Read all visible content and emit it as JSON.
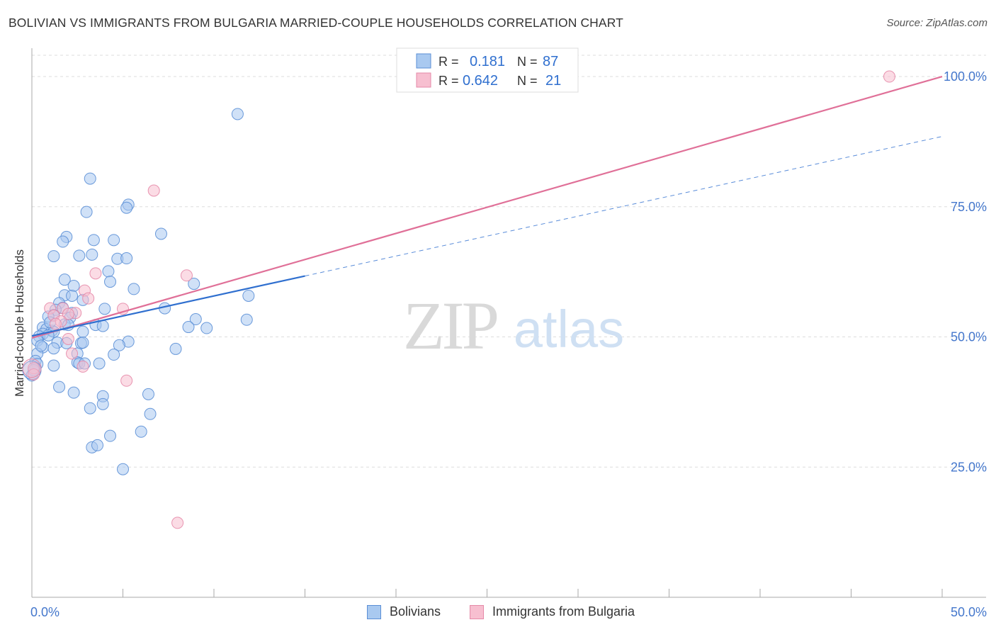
{
  "header": {
    "title": "BOLIVIAN VS IMMIGRANTS FROM BULGARIA MARRIED-COUPLE HOUSEHOLDS CORRELATION CHART",
    "source": "Source: ZipAtlas.com"
  },
  "watermark": {
    "zip": "ZIP",
    "atlas": "atlas"
  },
  "colors": {
    "blue": "#a9c9f0",
    "blue_stroke": "#5b8fd6",
    "blue_line": "#2f6fcf",
    "pink": "#f7bfd0",
    "pink_stroke": "#e58aa8",
    "pink_line": "#e07098",
    "axis_text": "#4477cc",
    "grid": "#dddddd"
  },
  "legend": {
    "rows": [
      {
        "r_label": "R =",
        "r_value": "0.181",
        "n_label": "N =",
        "n_value": "87"
      },
      {
        "r_label": "R =",
        "r_value": "0.642",
        "n_label": "N =",
        "n_value": "21"
      }
    ]
  },
  "bottom_legend": {
    "series1": "Bolivians",
    "series2": "Immigrants from Bulgaria"
  },
  "chart_data": {
    "type": "scatter",
    "title": "BOLIVIAN VS IMMIGRANTS FROM BULGARIA MARRIED-COUPLE HOUSEHOLDS CORRELATION CHART",
    "xlabel": "",
    "ylabel": "Married-couple Households",
    "xlim": [
      0,
      50
    ],
    "ylim": [
      0,
      103
    ],
    "x_tick_labels": [
      "0.0%",
      "50.0%"
    ],
    "y_ticks": [
      25,
      50,
      75,
      100
    ],
    "y_tick_labels": [
      "25.0%",
      "50.0%",
      "75.0%",
      "100.0%"
    ],
    "grid": true,
    "series": [
      {
        "name": "Bolivians",
        "R": 0.181,
        "N": 87,
        "trend": {
          "x": [
            0,
            15
          ],
          "y": [
            50.2,
            61.7
          ]
        },
        "trend_extension": {
          "x": [
            15,
            50
          ],
          "y": [
            61.7,
            88.5
          ]
        },
        "points": [
          [
            11.3,
            92.8
          ],
          [
            3.2,
            80.4
          ],
          [
            5.3,
            75.4
          ],
          [
            5.2,
            74.8
          ],
          [
            3.0,
            74.0
          ],
          [
            7.1,
            69.8
          ],
          [
            1.9,
            69.2
          ],
          [
            1.7,
            68.3
          ],
          [
            4.5,
            68.6
          ],
          [
            3.4,
            68.6
          ],
          [
            1.2,
            65.5
          ],
          [
            2.6,
            65.6
          ],
          [
            3.3,
            65.8
          ],
          [
            4.7,
            65.0
          ],
          [
            5.2,
            65.1
          ],
          [
            4.2,
            62.6
          ],
          [
            4.3,
            60.6
          ],
          [
            1.8,
            61.0
          ],
          [
            2.3,
            59.8
          ],
          [
            5.6,
            59.2
          ],
          [
            8.9,
            60.2
          ],
          [
            1.8,
            58.0
          ],
          [
            2.2,
            57.9
          ],
          [
            11.9,
            57.9
          ],
          [
            2.8,
            57.1
          ],
          [
            1.5,
            56.5
          ],
          [
            1.7,
            55.6
          ],
          [
            4.0,
            55.4
          ],
          [
            7.3,
            55.5
          ],
          [
            1.3,
            55.2
          ],
          [
            2.2,
            54.6
          ],
          [
            1.2,
            54.2
          ],
          [
            0.9,
            53.9
          ],
          [
            2.1,
            53.7
          ],
          [
            9.0,
            53.4
          ],
          [
            11.8,
            53.3
          ],
          [
            1.8,
            52.4
          ],
          [
            2.0,
            52.3
          ],
          [
            3.5,
            52.3
          ],
          [
            3.9,
            52.1
          ],
          [
            8.6,
            51.9
          ],
          [
            9.6,
            51.7
          ],
          [
            0.6,
            51.8
          ],
          [
            0.8,
            51.5
          ],
          [
            1.1,
            51.2
          ],
          [
            1.2,
            51.0
          ],
          [
            2.8,
            51.0
          ],
          [
            0.6,
            50.6
          ],
          [
            0.4,
            50.1
          ],
          [
            0.9,
            50.3
          ],
          [
            0.3,
            49.3
          ],
          [
            5.3,
            49.1
          ],
          [
            1.4,
            48.9
          ],
          [
            1.9,
            48.8
          ],
          [
            2.7,
            48.8
          ],
          [
            2.8,
            48.9
          ],
          [
            4.8,
            48.4
          ],
          [
            0.6,
            48.0
          ],
          [
            1.2,
            47.8
          ],
          [
            7.9,
            47.7
          ],
          [
            0.3,
            46.8
          ],
          [
            2.5,
            46.8
          ],
          [
            4.5,
            46.6
          ],
          [
            0.2,
            45.4
          ],
          [
            0.3,
            44.8
          ],
          [
            2.5,
            45.1
          ],
          [
            2.6,
            44.9
          ],
          [
            2.9,
            44.9
          ],
          [
            3.7,
            44.9
          ],
          [
            1.2,
            44.5
          ],
          [
            0.2,
            44.0
          ],
          [
            0.0,
            42.6
          ],
          [
            1.5,
            40.4
          ],
          [
            2.3,
            39.3
          ],
          [
            6.4,
            39.0
          ],
          [
            3.9,
            38.6
          ],
          [
            3.9,
            37.1
          ],
          [
            3.2,
            36.3
          ],
          [
            6.5,
            35.2
          ],
          [
            6.0,
            31.8
          ],
          [
            4.3,
            31.0
          ],
          [
            3.3,
            28.8
          ],
          [
            3.6,
            29.2
          ],
          [
            5.0,
            24.6
          ],
          [
            0.1,
            43.6
          ],
          [
            0.5,
            48.3
          ],
          [
            1.0,
            52.8
          ]
        ]
      },
      {
        "name": "Immigrants from Bulgaria",
        "R": 0.642,
        "N": 21,
        "trend": {
          "x": [
            0,
            50
          ],
          "y": [
            49.8,
            100.0
          ]
        },
        "points": [
          [
            47.1,
            100.0
          ],
          [
            6.7,
            78.1
          ],
          [
            8.5,
            61.8
          ],
          [
            3.5,
            62.2
          ],
          [
            2.9,
            58.9
          ],
          [
            3.1,
            57.4
          ],
          [
            1.0,
            55.5
          ],
          [
            1.7,
            55.5
          ],
          [
            5.0,
            55.4
          ],
          [
            2.4,
            54.6
          ],
          [
            2.0,
            54.4
          ],
          [
            1.2,
            54.1
          ],
          [
            1.6,
            53.0
          ],
          [
            1.3,
            52.5
          ],
          [
            2.0,
            49.6
          ],
          [
            2.2,
            46.8
          ],
          [
            2.8,
            44.3
          ],
          [
            5.2,
            41.6
          ],
          [
            0.1,
            44.0
          ],
          [
            0.1,
            42.8
          ],
          [
            8.0,
            14.3
          ]
        ]
      }
    ]
  }
}
